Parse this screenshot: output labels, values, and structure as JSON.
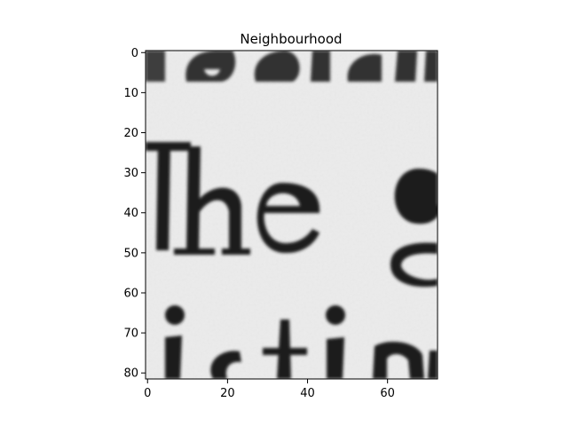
{
  "figure": {
    "title": "Neighbourhood",
    "image_description_hidden": "",
    "x_axis": {
      "range": [
        -0.5,
        72.5
      ],
      "ticks": [
        0,
        20,
        40,
        60
      ],
      "tick_labels": [
        "0",
        "20",
        "40",
        "60"
      ]
    },
    "y_axis": {
      "range": [
        81.5,
        -0.5
      ],
      "inverted": true,
      "ticks": [
        0,
        10,
        20,
        30,
        40,
        50,
        60,
        70,
        80
      ],
      "tick_labels": [
        "0",
        "10",
        "20",
        "30",
        "40",
        "50",
        "60",
        "70",
        "80"
      ]
    },
    "colors": {
      "paper": "#ececec",
      "ink": "#1a1a1a",
      "axes": "#000000"
    }
  }
}
